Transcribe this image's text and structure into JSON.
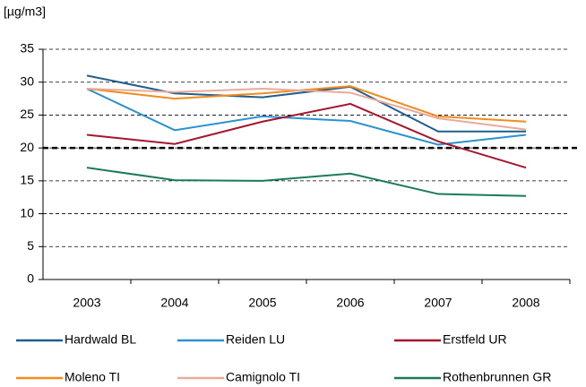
{
  "chart_data": {
    "type": "line",
    "y_unit": "[µg/m3]",
    "categories": [
      "2003",
      "2004",
      "2005",
      "2006",
      "2007",
      "2008"
    ],
    "series": [
      {
        "name": "Hardwald BL",
        "color": "#1f5f8b",
        "values": [
          31,
          28.3,
          27.7,
          29.3,
          22.5,
          22.5
        ]
      },
      {
        "name": "Reiden LU",
        "color": "#2a92cf",
        "values": [
          29,
          22.7,
          24.8,
          24.1,
          20.5,
          22
        ]
      },
      {
        "name": "Erstfeld UR",
        "color": "#a3172e",
        "values": [
          22,
          20.6,
          24,
          26.7,
          21,
          17
        ]
      },
      {
        "name": "Moleno TI",
        "color": "#f08c1e",
        "values": [
          29,
          27.5,
          28.3,
          29.4,
          24.8,
          24
        ]
      },
      {
        "name": "Camignolo TI",
        "color": "#e9aa9a",
        "values": [
          29,
          28.5,
          29,
          28.4,
          24.5,
          22.8
        ]
      },
      {
        "name": "Rothenbrunnen GR",
        "color": "#1a7a5a",
        "values": [
          17,
          15.1,
          15,
          16.1,
          13,
          12.7
        ]
      }
    ],
    "ylim": [
      0,
      35
    ],
    "yticks": [
      0,
      5,
      10,
      15,
      20,
      25,
      30,
      35
    ],
    "grid": true,
    "reference_line": 20,
    "legend": "bottom"
  }
}
